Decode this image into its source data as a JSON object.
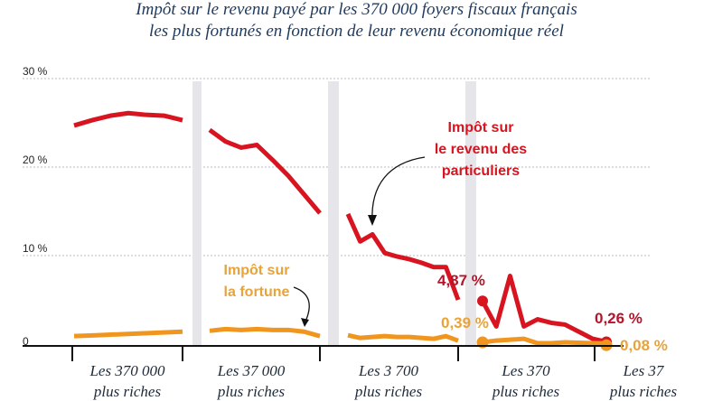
{
  "chart_data": {
    "type": "line",
    "title": [
      "Impôt sur le revenu payé par les 370 000 foyers fiscaux français",
      "les plus fortunés en fonction de leur revenu économique réel"
    ],
    "ylim": [
      0,
      30
    ],
    "yticks": [
      {
        "v": 0,
        "label": "0"
      },
      {
        "v": 10,
        "label": "10 %"
      },
      {
        "v": 20,
        "label": "20 %"
      },
      {
        "v": 30,
        "label": "30 %"
      }
    ],
    "grid": true,
    "categories": [
      [
        "Les  370 000",
        "plus riches"
      ],
      [
        "Les 37 000",
        "plus riches"
      ],
      [
        "Les 3 700",
        "plus riches"
      ],
      [
        "Les 370",
        "plus riches"
      ],
      [
        "Les 37",
        "plus riches"
      ]
    ],
    "series": [
      {
        "name": "Impôt sur le revenu des particuliers",
        "label_lines": [
          "Impôt sur",
          "le revenu des",
          "particuliers"
        ],
        "color": "#d7141f",
        "groups": [
          [
            24.7,
            25.3,
            25.8,
            26.1,
            25.9,
            25.8,
            25.3
          ],
          [
            24.2,
            22.9,
            22.2,
            22.5,
            20.8,
            19.0,
            16.9,
            14.8
          ],
          [
            14.7,
            11.6,
            12.4,
            10.3,
            9.9,
            9.6,
            9.2,
            8.7,
            8.7,
            5.0
          ],
          [
            4.87,
            2.0,
            7.7,
            2.0,
            2.8,
            2.4,
            2.2,
            1.4,
            0.6,
            0.26
          ]
        ]
      },
      {
        "name": "Impôt sur la fortune",
        "label_lines": [
          "Impôt sur",
          "la fortune"
        ],
        "color": "#f0961e",
        "groups": [
          [
            0.9,
            1.0,
            1.1,
            1.2,
            1.3,
            1.4
          ],
          [
            1.5,
            1.7,
            1.6,
            1.7,
            1.6,
            1.6,
            1.4,
            0.9
          ],
          [
            1.0,
            0.7,
            0.8,
            0.9,
            0.8,
            0.8,
            0.7,
            0.6,
            0.9,
            0.39
          ],
          [
            0.2,
            0.4,
            0.5,
            0.6,
            0.1,
            0.1,
            0.2,
            0.15,
            0.1,
            0.08
          ]
        ]
      }
    ],
    "annotations": {
      "ir_start_370": "4,87 %",
      "ifi_end_3700": "0,39 %",
      "ir_end_37": "0,26 %",
      "ifi_end_37": "0,08 %"
    },
    "label_colors": {
      "ir_value": "#b5142a",
      "ifi_value": "#e8a33a"
    }
  }
}
